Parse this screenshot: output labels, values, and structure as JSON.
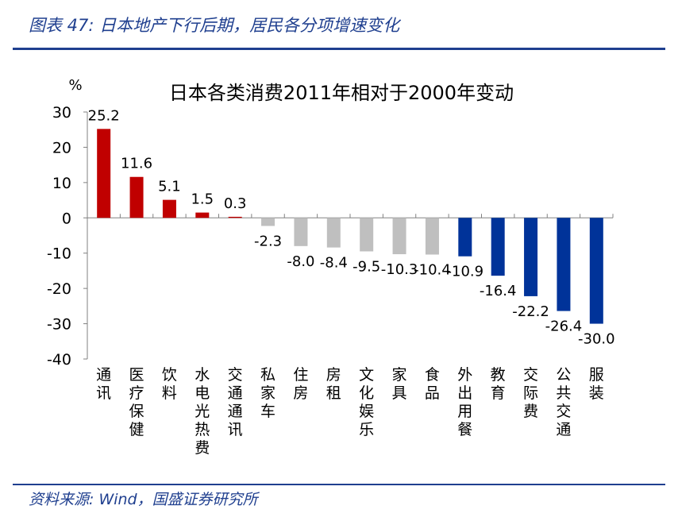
{
  "figure_title": "图表 47:  日本地产下行后期，居民各分项增速变化",
  "source": "资料来源:  Wind，国盛证券研究所",
  "colors": {
    "accent": "#1f3f8f",
    "positive": "#c00000",
    "neutral": "#bfbfbf",
    "negative": "#003399"
  },
  "chart_data": {
    "type": "bar",
    "title": "日本各类消费2011年相对于2000年变动",
    "ylabel": "%",
    "xlabel": "",
    "ylim": [
      -40,
      30
    ],
    "yticks": [
      30,
      20,
      10,
      0,
      -10,
      -20,
      -30,
      -40
    ],
    "grid": false,
    "categories": [
      "通讯",
      "医疗保健",
      "饮料",
      "水电光热费",
      "交通通讯",
      "私家车",
      "住房",
      "房租",
      "文化娱乐",
      "家具",
      "食品",
      "外出用餐",
      "教育",
      "交际费",
      "公共交通",
      "服装"
    ],
    "values": [
      25.2,
      11.6,
      5.1,
      1.5,
      0.3,
      -2.3,
      -8.0,
      -8.4,
      -9.5,
      -10.3,
      -10.4,
      -10.9,
      -16.4,
      -22.2,
      -26.4,
      -30.0
    ],
    "data_labels": [
      "25.2",
      "11.6",
      "5.1",
      "1.5",
      "0.3",
      "-2.3",
      "-8.0",
      "-8.4",
      "-9.5",
      "-10.3",
      "-10.4",
      "-10.9",
      "-16.4",
      "-22.2",
      "-26.4",
      "-30.0"
    ],
    "bar_colors": [
      "#c00000",
      "#c00000",
      "#c00000",
      "#c00000",
      "#c00000",
      "#bfbfbf",
      "#bfbfbf",
      "#bfbfbf",
      "#bfbfbf",
      "#bfbfbf",
      "#bfbfbf",
      "#003399",
      "#003399",
      "#003399",
      "#003399",
      "#003399"
    ]
  }
}
